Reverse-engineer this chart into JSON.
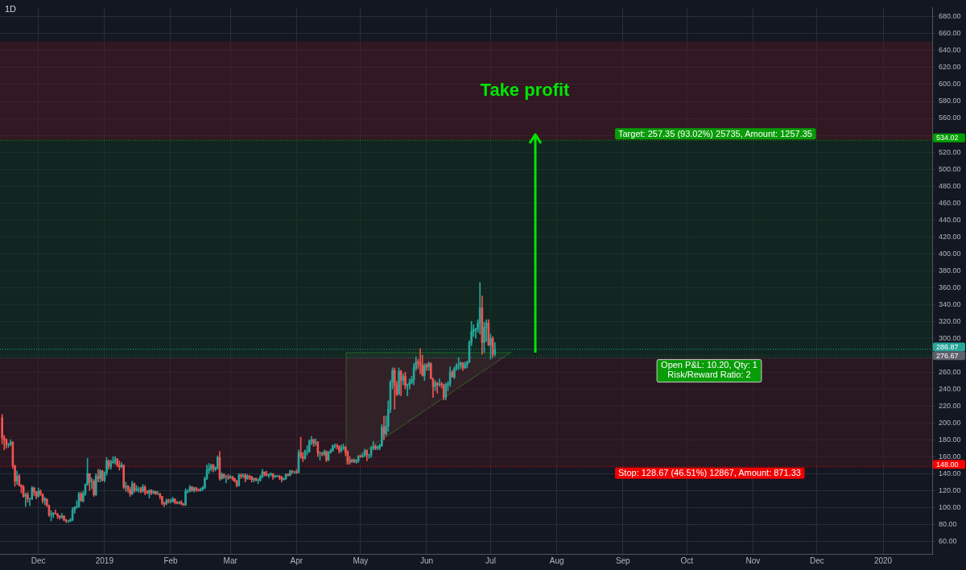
{
  "chart_data": {
    "type": "candlestick",
    "title": "1D",
    "x": [
      "2018-11-14",
      "2018-11-15",
      "2018-11-16",
      "2018-11-17",
      "2018-11-18",
      "2018-11-19",
      "2018-11-20",
      "2018-11-21",
      "2018-11-22",
      "2018-11-23",
      "2018-11-24",
      "2018-11-25",
      "2018-11-26",
      "2018-11-27",
      "2018-11-28",
      "2018-11-29",
      "2018-11-30",
      "2018-12-01",
      "2018-12-02",
      "2018-12-03",
      "2018-12-04",
      "2018-12-05",
      "2018-12-06",
      "2018-12-07",
      "2018-12-08",
      "2018-12-09",
      "2018-12-10",
      "2018-12-11",
      "2018-12-12",
      "2018-12-13",
      "2018-12-14",
      "2018-12-15",
      "2018-12-16",
      "2018-12-17",
      "2018-12-18",
      "2018-12-19",
      "2018-12-20",
      "2018-12-21",
      "2018-12-22",
      "2018-12-23",
      "2018-12-24",
      "2018-12-25",
      "2018-12-26",
      "2018-12-27",
      "2018-12-28",
      "2018-12-29",
      "2018-12-30",
      "2018-12-31",
      "2019-01-01",
      "2019-01-02",
      "2019-01-03",
      "2019-01-04",
      "2019-01-05",
      "2019-01-06",
      "2019-01-07",
      "2019-01-08",
      "2019-01-09",
      "2019-01-10",
      "2019-01-11",
      "2019-01-12",
      "2019-01-13",
      "2019-01-14",
      "2019-01-15",
      "2019-01-16",
      "2019-01-17",
      "2019-01-18",
      "2019-01-19",
      "2019-01-20",
      "2019-01-21",
      "2019-01-22",
      "2019-01-23",
      "2019-01-24",
      "2019-01-25",
      "2019-01-26",
      "2019-01-27",
      "2019-01-28",
      "2019-01-29",
      "2019-01-30",
      "2019-01-31",
      "2019-02-01",
      "2019-02-02",
      "2019-02-03",
      "2019-02-04",
      "2019-02-05",
      "2019-02-06",
      "2019-02-07",
      "2019-02-08",
      "2019-02-09",
      "2019-02-10",
      "2019-02-11",
      "2019-02-12",
      "2019-02-13",
      "2019-02-14",
      "2019-02-15",
      "2019-02-16",
      "2019-02-17",
      "2019-02-18",
      "2019-02-19",
      "2019-02-20",
      "2019-02-21",
      "2019-02-22",
      "2019-02-23",
      "2019-02-24",
      "2019-02-25",
      "2019-02-26",
      "2019-02-27",
      "2019-02-28",
      "2019-03-01",
      "2019-03-02",
      "2019-03-03",
      "2019-03-04",
      "2019-03-05",
      "2019-03-06",
      "2019-03-07",
      "2019-03-08",
      "2019-03-09",
      "2019-03-10",
      "2019-03-11",
      "2019-03-12",
      "2019-03-13",
      "2019-03-14",
      "2019-03-15",
      "2019-03-16",
      "2019-03-17",
      "2019-03-18",
      "2019-03-19",
      "2019-03-20",
      "2019-03-21",
      "2019-03-22",
      "2019-03-23",
      "2019-03-24",
      "2019-03-25",
      "2019-03-26",
      "2019-03-27",
      "2019-03-28",
      "2019-03-29",
      "2019-03-30",
      "2019-03-31",
      "2019-04-01",
      "2019-04-02",
      "2019-04-03",
      "2019-04-04",
      "2019-04-05",
      "2019-04-06",
      "2019-04-07",
      "2019-04-08",
      "2019-04-09",
      "2019-04-10",
      "2019-04-11",
      "2019-04-12",
      "2019-04-13",
      "2019-04-14",
      "2019-04-15",
      "2019-04-16",
      "2019-04-17",
      "2019-04-18",
      "2019-04-19",
      "2019-04-20",
      "2019-04-21",
      "2019-04-22",
      "2019-04-23",
      "2019-04-24",
      "2019-04-25",
      "2019-04-26",
      "2019-04-27",
      "2019-04-28",
      "2019-04-29",
      "2019-04-30",
      "2019-05-01",
      "2019-05-02",
      "2019-05-03",
      "2019-05-04",
      "2019-05-05",
      "2019-05-06",
      "2019-05-07",
      "2019-05-08",
      "2019-05-09",
      "2019-05-10",
      "2019-05-11",
      "2019-05-12",
      "2019-05-13",
      "2019-05-14",
      "2019-05-15",
      "2019-05-16",
      "2019-05-17",
      "2019-05-18",
      "2019-05-19",
      "2019-05-20",
      "2019-05-21",
      "2019-05-22",
      "2019-05-23",
      "2019-05-24",
      "2019-05-25",
      "2019-05-26",
      "2019-05-27",
      "2019-05-28",
      "2019-05-29",
      "2019-05-30",
      "2019-05-31",
      "2019-06-01",
      "2019-06-02",
      "2019-06-03",
      "2019-06-04",
      "2019-06-05",
      "2019-06-06",
      "2019-06-07",
      "2019-06-08",
      "2019-06-09",
      "2019-06-10",
      "2019-06-11",
      "2019-06-12",
      "2019-06-13",
      "2019-06-14",
      "2019-06-15",
      "2019-06-16",
      "2019-06-17",
      "2019-06-18",
      "2019-06-19",
      "2019-06-20",
      "2019-06-21",
      "2019-06-22",
      "2019-06-23",
      "2019-06-24",
      "2019-06-25",
      "2019-06-26",
      "2019-06-27",
      "2019-06-28",
      "2019-06-29",
      "2019-06-30",
      "2019-07-01",
      "2019-07-02",
      "2019-07-03"
    ],
    "ohlc": [
      [
        206,
        210,
        175,
        182
      ],
      [
        182,
        185,
        168,
        180
      ],
      [
        180,
        181,
        170,
        174
      ],
      [
        174,
        176,
        171,
        174
      ],
      [
        174,
        180,
        173,
        177
      ],
      [
        177,
        178,
        146,
        149
      ],
      [
        149,
        150,
        125,
        131
      ],
      [
        131,
        143,
        127,
        137
      ],
      [
        137,
        139,
        125,
        126
      ],
      [
        126,
        127,
        117,
        124
      ],
      [
        124,
        126,
        112,
        113
      ],
      [
        113,
        117,
        101,
        115
      ],
      [
        115,
        118,
        106,
        110
      ],
      [
        110,
        111,
        102,
        110
      ],
      [
        110,
        125,
        109,
        123
      ],
      [
        123,
        124,
        114,
        118
      ],
      [
        118,
        119,
        110,
        113
      ],
      [
        113,
        123,
        112,
        119
      ],
      [
        119,
        121,
        114,
        116
      ],
      [
        116,
        116,
        105,
        108
      ],
      [
        108,
        112,
        103,
        110
      ],
      [
        110,
        110,
        101,
        102
      ],
      [
        102,
        103,
        89,
        91
      ],
      [
        91,
        96,
        84,
        92
      ],
      [
        92,
        94,
        88,
        93
      ],
      [
        93,
        97,
        92,
        92
      ],
      [
        92,
        93,
        87,
        90
      ],
      [
        90,
        90,
        86,
        88
      ],
      [
        88,
        93,
        87,
        90
      ],
      [
        90,
        90,
        84,
        85
      ],
      [
        85,
        86,
        82,
        84
      ],
      [
        84,
        85,
        82,
        84
      ],
      [
        84,
        87,
        83,
        85
      ],
      [
        85,
        100,
        84,
        97
      ],
      [
        97,
        101,
        93,
        100
      ],
      [
        100,
        108,
        99,
        101
      ],
      [
        101,
        118,
        100,
        116
      ],
      [
        116,
        118,
        107,
        108
      ],
      [
        108,
        119,
        106,
        116
      ],
      [
        116,
        128,
        114,
        127
      ],
      [
        127,
        158,
        126,
        140
      ],
      [
        140,
        140,
        120,
        130
      ],
      [
        130,
        135,
        122,
        131
      ],
      [
        131,
        133,
        113,
        115
      ],
      [
        115,
        140,
        114,
        137
      ],
      [
        137,
        145,
        130,
        134
      ],
      [
        134,
        145,
        130,
        143
      ],
      [
        143,
        144,
        131,
        132
      ],
      [
        132,
        142,
        130,
        141
      ],
      [
        141,
        159,
        138,
        155
      ],
      [
        155,
        156,
        145,
        148
      ],
      [
        148,
        156,
        145,
        153
      ],
      [
        153,
        160,
        152,
        154
      ],
      [
        154,
        160,
        151,
        157
      ],
      [
        157,
        158,
        148,
        150
      ],
      [
        150,
        155,
        144,
        148
      ],
      [
        148,
        153,
        147,
        150
      ],
      [
        150,
        150,
        122,
        124
      ],
      [
        124,
        130,
        119,
        125
      ],
      [
        125,
        126,
        118,
        121
      ],
      [
        121,
        124,
        113,
        116
      ],
      [
        116,
        131,
        115,
        128
      ],
      [
        128,
        129,
        118,
        120
      ],
      [
        120,
        126,
        119,
        122
      ],
      [
        122,
        124,
        118,
        122
      ],
      [
        122,
        124,
        117,
        119
      ],
      [
        119,
        127,
        118,
        124
      ],
      [
        124,
        126,
        115,
        118
      ],
      [
        118,
        120,
        116,
        117
      ],
      [
        117,
        121,
        111,
        120
      ],
      [
        120,
        121,
        115,
        117
      ],
      [
        117,
        120,
        116,
        119
      ],
      [
        119,
        119,
        115,
        116
      ],
      [
        116,
        119,
        115,
        116
      ],
      [
        116,
        117,
        110,
        113
      ],
      [
        113,
        113,
        103,
        105
      ],
      [
        105,
        106,
        101,
        104
      ],
      [
        104,
        110,
        103,
        108
      ],
      [
        108,
        110,
        105,
        107
      ],
      [
        107,
        110,
        105,
        107
      ],
      [
        107,
        112,
        106,
        110
      ],
      [
        110,
        110,
        104,
        106
      ],
      [
        106,
        107,
        104,
        105
      ],
      [
        105,
        107,
        104,
        106
      ],
      [
        106,
        108,
        103,
        104
      ],
      [
        104,
        105,
        102,
        103
      ],
      [
        103,
        122,
        102,
        119
      ],
      [
        119,
        121,
        117,
        119
      ],
      [
        119,
        126,
        118,
        124
      ],
      [
        124,
        125,
        119,
        120
      ],
      [
        120,
        124,
        118,
        123
      ],
      [
        123,
        124,
        119,
        121
      ],
      [
        121,
        122,
        119,
        120
      ],
      [
        120,
        123,
        119,
        121
      ],
      [
        121,
        125,
        120,
        123
      ],
      [
        123,
        136,
        122,
        134
      ],
      [
        134,
        150,
        133,
        144
      ],
      [
        144,
        152,
        140,
        146
      ],
      [
        146,
        151,
        143,
        150
      ],
      [
        150,
        151,
        142,
        145
      ],
      [
        145,
        148,
        143,
        147
      ],
      [
        147,
        161,
        145,
        159
      ],
      [
        159,
        166,
        132,
        134
      ],
      [
        134,
        141,
        133,
        139
      ],
      [
        139,
        140,
        134,
        136
      ],
      [
        136,
        138,
        129,
        136
      ],
      [
        136,
        139,
        133,
        135
      ],
      [
        135,
        138,
        134,
        136
      ],
      [
        136,
        137,
        132,
        134
      ],
      [
        134,
        135,
        130,
        131
      ],
      [
        131,
        132,
        124,
        126
      ],
      [
        126,
        140,
        125,
        138
      ],
      [
        138,
        140,
        134,
        137
      ],
      [
        137,
        140,
        135,
        138
      ],
      [
        138,
        140,
        130,
        134
      ],
      [
        134,
        139,
        133,
        137
      ],
      [
        137,
        138,
        133,
        136
      ],
      [
        136,
        137,
        130,
        133
      ],
      [
        133,
        135,
        130,
        134
      ],
      [
        134,
        135,
        131,
        132
      ],
      [
        132,
        134,
        128,
        132
      ],
      [
        132,
        138,
        131,
        136
      ],
      [
        136,
        145,
        135,
        142
      ],
      [
        142,
        142,
        137,
        139
      ],
      [
        139,
        143,
        137,
        138
      ],
      [
        138,
        140,
        135,
        139
      ],
      [
        139,
        141,
        137,
        140
      ],
      [
        140,
        140,
        133,
        136
      ],
      [
        136,
        138,
        135,
        137
      ],
      [
        137,
        138,
        136,
        137
      ],
      [
        137,
        138,
        133,
        136
      ],
      [
        136,
        137,
        130,
        133
      ],
      [
        133,
        135,
        132,
        134
      ],
      [
        134,
        140,
        133,
        139
      ],
      [
        139,
        140,
        137,
        138
      ],
      [
        138,
        144,
        137,
        143
      ],
      [
        143,
        144,
        140,
        142
      ],
      [
        142,
        143,
        140,
        142
      ],
      [
        142,
        145,
        140,
        141
      ],
      [
        141,
        168,
        141,
        165
      ],
      [
        165,
        183,
        158,
        160
      ],
      [
        160,
        165,
        154,
        158
      ],
      [
        158,
        168,
        157,
        166
      ],
      [
        166,
        173,
        162,
        166
      ],
      [
        166,
        180,
        165,
        178
      ],
      [
        178,
        184,
        174,
        180
      ],
      [
        180,
        181,
        172,
        176
      ],
      [
        176,
        181,
        173,
        177
      ],
      [
        177,
        178,
        160,
        164
      ],
      [
        164,
        166,
        156,
        164
      ],
      [
        164,
        165,
        161,
        163
      ],
      [
        163,
        168,
        161,
        166
      ],
      [
        166,
        167,
        154,
        156
      ],
      [
        156,
        166,
        155,
        165
      ],
      [
        165,
        169,
        164,
        167
      ],
      [
        167,
        174,
        166,
        173
      ],
      [
        173,
        175,
        170,
        173
      ],
      [
        173,
        175,
        169,
        172
      ],
      [
        172,
        173,
        164,
        167
      ],
      [
        167,
        174,
        165,
        170
      ],
      [
        170,
        175,
        168,
        171
      ],
      [
        171,
        172,
        161,
        165
      ],
      [
        165,
        167,
        151,
        155
      ],
      [
        155,
        160,
        151,
        154
      ],
      [
        154,
        157,
        153,
        156
      ],
      [
        156,
        157,
        153,
        154
      ],
      [
        154,
        157,
        152,
        155
      ],
      [
        155,
        161,
        153,
        161
      ],
      [
        161,
        162,
        159,
        160
      ],
      [
        160,
        164,
        159,
        161
      ],
      [
        161,
        169,
        160,
        167
      ],
      [
        167,
        168,
        155,
        162
      ],
      [
        162,
        163,
        158,
        162
      ],
      [
        162,
        172,
        159,
        170
      ],
      [
        170,
        178,
        168,
        172
      ],
      [
        172,
        174,
        168,
        170
      ],
      [
        170,
        173,
        168,
        171
      ],
      [
        170,
        175,
        168,
        173
      ],
      [
        173,
        198,
        172,
        195
      ],
      [
        195,
        208,
        180,
        187
      ],
      [
        187,
        208,
        185,
        196
      ],
      [
        196,
        226,
        190,
        216
      ],
      [
        216,
        250,
        212,
        248
      ],
      [
        248,
        265,
        240,
        262
      ],
      [
        262,
        265,
        216,
        244
      ],
      [
        244,
        249,
        232,
        234
      ],
      [
        234,
        265,
        233,
        261
      ],
      [
        261,
        262,
        232,
        250
      ],
      [
        250,
        258,
        245,
        255
      ],
      [
        255,
        260,
        240,
        244
      ],
      [
        244,
        246,
        232,
        245
      ],
      [
        245,
        252,
        240,
        248
      ],
      [
        248,
        255,
        246,
        251
      ],
      [
        251,
        270,
        245,
        265
      ],
      [
        265,
        278,
        262,
        272
      ],
      [
        272,
        275,
        264,
        271
      ],
      [
        271,
        288,
        258,
        268
      ],
      [
        268,
        280,
        255,
        256
      ],
      [
        256,
        270,
        250,
        268
      ],
      [
        268,
        270,
        262,
        266
      ],
      [
        266,
        272,
        262,
        270
      ],
      [
        270,
        271,
        252,
        252
      ],
      [
        252,
        253,
        230,
        243
      ],
      [
        243,
        250,
        238,
        247
      ],
      [
        247,
        248,
        235,
        245
      ],
      [
        245,
        252,
        243,
        246
      ],
      [
        246,
        248,
        241,
        245
      ],
      [
        245,
        246,
        227,
        230
      ],
      [
        230,
        247,
        227,
        245
      ],
      [
        245,
        249,
        238,
        246
      ],
      [
        246,
        266,
        243,
        260
      ],
      [
        260,
        262,
        254,
        254
      ],
      [
        254,
        266,
        252,
        264
      ],
      [
        264,
        270,
        262,
        268
      ],
      [
        268,
        277,
        263,
        268
      ],
      [
        268,
        272,
        264,
        271
      ],
      [
        271,
        271,
        262,
        265
      ],
      [
        265,
        272,
        264,
        269
      ],
      [
        269,
        273,
        265,
        272
      ],
      [
        272,
        297,
        271,
        295
      ],
      [
        295,
        320,
        291,
        308
      ],
      [
        308,
        316,
        302,
        310
      ],
      [
        310,
        312,
        300,
        311
      ],
      [
        311,
        322,
        307,
        318
      ],
      [
        318,
        366,
        305,
        336
      ],
      [
        336,
        350,
        281,
        295
      ],
      [
        295,
        319,
        283,
        313
      ],
      [
        313,
        322,
        296,
        318
      ],
      [
        318,
        322,
        291,
        292
      ],
      [
        292,
        305,
        275,
        300
      ],
      [
        300,
        302,
        277,
        281
      ],
      [
        281,
        295,
        279,
        286.87
      ]
    ],
    "xlim": [
      "2018-11-13",
      "2020-01-24"
    ],
    "xticks": [
      {
        "value": "2018-12-01",
        "label": "Dec"
      },
      {
        "value": "2019-01-01",
        "label": "2019"
      },
      {
        "value": "2019-02-01",
        "label": "Feb"
      },
      {
        "value": "2019-03-01",
        "label": "Mar"
      },
      {
        "value": "2019-04-01",
        "label": "Apr"
      },
      {
        "value": "2019-05-01",
        "label": "May"
      },
      {
        "value": "2019-06-01",
        "label": "Jun"
      },
      {
        "value": "2019-07-01",
        "label": "Jul"
      },
      {
        "value": "2019-08-01",
        "label": "Aug"
      },
      {
        "value": "2019-09-01",
        "label": "Sep"
      },
      {
        "value": "2019-10-01",
        "label": "Oct"
      },
      {
        "value": "2019-11-01",
        "label": "Nov"
      },
      {
        "value": "2019-12-01",
        "label": "Dec"
      },
      {
        "value": "2020-01-01",
        "label": "2020"
      }
    ],
    "ylim": [
      45,
      691
    ],
    "yticks": [
      {
        "value": 60,
        "label": "60.00"
      },
      {
        "value": 80,
        "label": "80.00"
      },
      {
        "value": 100,
        "label": "100.00"
      },
      {
        "value": 120,
        "label": "120.00"
      },
      {
        "value": 140,
        "label": "140.00"
      },
      {
        "value": 160,
        "label": "160.00"
      },
      {
        "value": 180,
        "label": "180.00"
      },
      {
        "value": 200,
        "label": "200.00"
      },
      {
        "value": 220,
        "label": "220.00"
      },
      {
        "value": 240,
        "label": "240.00"
      },
      {
        "value": 260,
        "label": "260.00"
      },
      {
        "value": 280,
        "label": null
      },
      {
        "value": 300,
        "label": "300.00"
      },
      {
        "value": 320,
        "label": "320.00"
      },
      {
        "value": 340,
        "label": "340.00"
      },
      {
        "value": 360,
        "label": "360.00"
      },
      {
        "value": 380,
        "label": "380.00"
      },
      {
        "value": 400,
        "label": "400.00"
      },
      {
        "value": 420,
        "label": "420.00"
      },
      {
        "value": 440,
        "label": "440.00"
      },
      {
        "value": 460,
        "label": "460.00"
      },
      {
        "value": 480,
        "label": "480.00"
      },
      {
        "value": 500,
        "label": "500.00"
      },
      {
        "value": 520,
        "label": "520.00"
      },
      {
        "value": 540,
        "label": null
      },
      {
        "value": 560,
        "label": "560.00"
      },
      {
        "value": 580,
        "label": "580.00"
      },
      {
        "value": 600,
        "label": "600.00"
      },
      {
        "value": 620,
        "label": "620.00"
      },
      {
        "value": 640,
        "label": "640.00"
      },
      {
        "value": 660,
        "label": "660.00"
      },
      {
        "value": 680,
        "label": "680.00"
      }
    ],
    "grid": true,
    "legend": false,
    "bands": [
      {
        "axis": "y",
        "from": 534.02,
        "to": 651,
        "label": "Take profit",
        "color": "#4a1a22"
      },
      {
        "axis": "y",
        "from": 276.67,
        "to": 534.02,
        "label": "Target: 257.35 (93.02%) 25735, Amount: 1257.35",
        "color": "#10331f"
      },
      {
        "axis": "y",
        "from": 148,
        "to": 276.67,
        "label": "Stop: 128.67 (46.51%) 12867, Amount: 871.33",
        "color": "#3d1820"
      }
    ],
    "ref_lines": [
      {
        "axis": "y",
        "value": 286.87,
        "label": "286.87",
        "color": "#26a69a",
        "line_style": "dotted"
      },
      {
        "axis": "y",
        "value": 534.02,
        "label": "534.02",
        "color": "#00a000",
        "line_style": "dotted"
      },
      {
        "axis": "y",
        "value": 276.67,
        "label": "276.67",
        "color": "#5d606b",
        "line_style": "dotted"
      },
      {
        "axis": "y",
        "value": 148,
        "label": "148.00",
        "color": "#ff0000",
        "line_style": "dotted"
      }
    ],
    "annotations": [
      "Open P&L: 10.20, Qty: 1",
      "Risk/Reward Ratio: 2"
    ]
  }
}
